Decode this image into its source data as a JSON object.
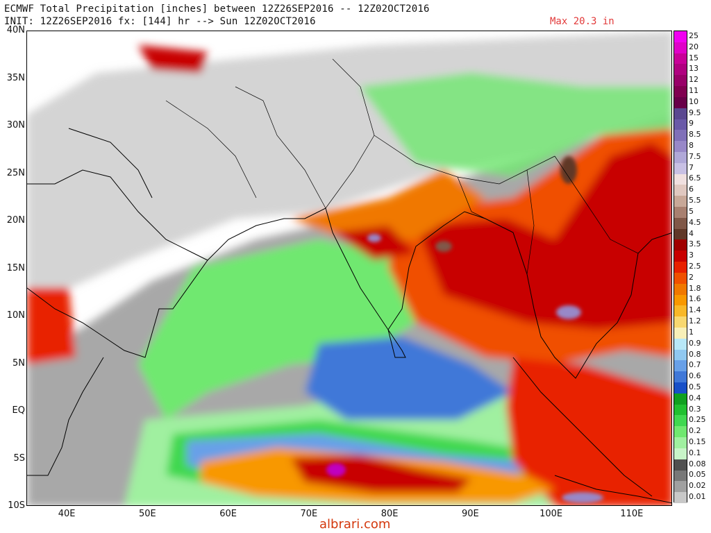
{
  "header": {
    "line1": "ECMWF Total Precipitation [inches] between 12Z26SEP2016 -- 12Z02OCT2016",
    "line2": "INIT: 12Z26SEP2016 fx: [144] hr --> Sun 12Z02OCT2016",
    "max_label": "Max 20.3 in"
  },
  "map": {
    "lat_labels": [
      "40N",
      "35N",
      "30N",
      "25N",
      "20N",
      "15N",
      "10N",
      "5N",
      "EQ",
      "5S",
      "10S"
    ],
    "lon_labels": [
      "40E",
      "50E",
      "60E",
      "70E",
      "80E",
      "90E",
      "100E",
      "110E"
    ],
    "lat_range": [
      -10,
      40
    ],
    "lon_range": [
      35,
      115
    ]
  },
  "legend": {
    "values": [
      "25",
      "20",
      "15",
      "13",
      "12",
      "11",
      "10",
      "9.5",
      "9",
      "8.5",
      "8",
      "7.5",
      "7",
      "6.5",
      "6",
      "5.5",
      "5",
      "4.5",
      "4",
      "3.5",
      "3",
      "2.5",
      "2",
      "1.8",
      "1.6",
      "1.4",
      "1.2",
      "1",
      "0.9",
      "0.8",
      "0.7",
      "0.6",
      "0.5",
      "0.4",
      "0.3",
      "0.25",
      "0.2",
      "0.15",
      "0.1",
      "0.08",
      "0.05",
      "0.02",
      "0.01"
    ],
    "colors": [
      "#f000f0",
      "#e000c8",
      "#c80098",
      "#b00080",
      "#980068",
      "#800050",
      "#680048",
      "#5a4890",
      "#6a5aa8",
      "#8070b8",
      "#9888c8",
      "#b0a8d8",
      "#c8c0e4",
      "#f0e0e0",
      "#e0c8c0",
      "#c8a898",
      "#a88070",
      "#805848",
      "#603828",
      "#a00000",
      "#c80000",
      "#e82000",
      "#f05000",
      "#f07800",
      "#f89800",
      "#f8b828",
      "#f8d870",
      "#f8f0b8",
      "#b8e8f8",
      "#90c8f0",
      "#68a0e8",
      "#4078d8",
      "#1850c8",
      "#10a020",
      "#20c030",
      "#40d850",
      "#70e870",
      "#a0f0a0",
      "#c8f4c8",
      "#505050",
      "#787878",
      "#a0a0a0",
      "#c8c8c8",
      "#ffffff"
    ]
  },
  "watermark": "albrari.com"
}
